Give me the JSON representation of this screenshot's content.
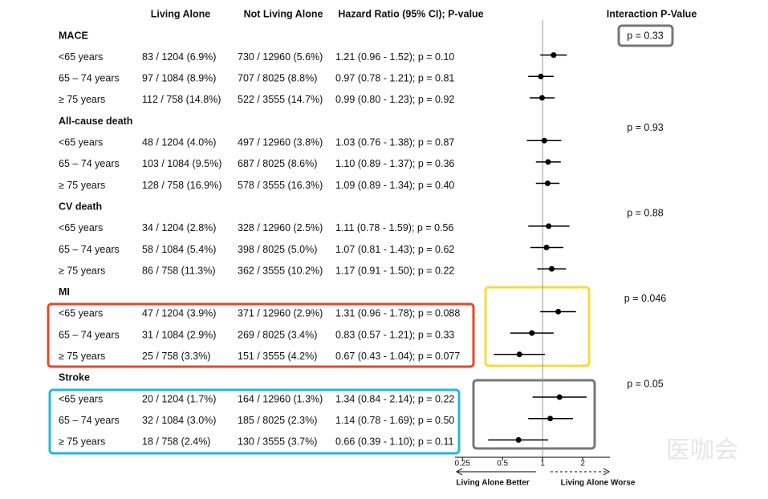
{
  "chart_data": {
    "type": "forest",
    "columns": {
      "living_alone": "Living Alone",
      "not_living_alone": "Not Living Alone",
      "result": "Hazard Ratio (95% CI); P-value",
      "interaction": "Interaction P-Value"
    },
    "groups": [
      {
        "name": "MACE",
        "interaction": "p = 0.33",
        "rows": [
          {
            "label": "<65 years",
            "living_alone": "83 / 1204 (6.9%)",
            "not_living_alone": "730 / 12960 (5.6%)",
            "result": "1.21 (0.96 - 1.52); p = 0.10",
            "hr": 1.21,
            "ci_low": 0.96,
            "ci_high": 1.52
          },
          {
            "label": "65 – 74 years",
            "living_alone": "97 / 1084 (8.9%)",
            "not_living_alone": "707 / 8025 (8.8%)",
            "result": "0.97 (0.78 - 1.21); p = 0.81",
            "hr": 0.97,
            "ci_low": 0.78,
            "ci_high": 1.21
          },
          {
            "label": "≥ 75 years",
            "living_alone": "112 / 758 (14.8%)",
            "not_living_alone": "522 / 3555 (14.7%)",
            "result": "0.99 (0.80 - 1.23); p = 0.92",
            "hr": 0.99,
            "ci_low": 0.8,
            "ci_high": 1.23
          }
        ]
      },
      {
        "name": "All-cause death",
        "interaction": "p = 0.93",
        "rows": [
          {
            "label": "<65 years",
            "living_alone": "48 / 1204 (4.0%)",
            "not_living_alone": "497 / 12960 (3.8%)",
            "result": "1.03  (0.76 - 1.38); p = 0.87",
            "hr": 1.03,
            "ci_low": 0.76,
            "ci_high": 1.38
          },
          {
            "label": "65 – 74 years",
            "living_alone": "103 / 1084 (9.5%)",
            "not_living_alone": "687 / 8025 (8.6%)",
            "result": "1.10 (0.89 - 1.37); p = 0.36",
            "hr": 1.1,
            "ci_low": 0.89,
            "ci_high": 1.37
          },
          {
            "label": "≥ 75 years",
            "living_alone": "128 / 758 (16.9%)",
            "not_living_alone": "578 / 3555 (16.3%)",
            "result": "1.09 (0.89 - 1.34); p = 0.40",
            "hr": 1.09,
            "ci_low": 0.89,
            "ci_high": 1.34
          }
        ]
      },
      {
        "name": "CV death",
        "interaction": "p = 0.88",
        "rows": [
          {
            "label": "<65 years",
            "living_alone": "34 / 1204 (2.8%)",
            "not_living_alone": "328 / 12960 (2.5%)",
            "result": "1.11 (0.78 - 1.59); p = 0.56",
            "hr": 1.11,
            "ci_low": 0.78,
            "ci_high": 1.59
          },
          {
            "label": "65 – 74 years",
            "living_alone": "58 / 1084 (5.4%)",
            "not_living_alone": "398 / 8025 (5.0%)",
            "result": "1.07 (0.81 - 1.43); p = 0.62",
            "hr": 1.07,
            "ci_low": 0.81,
            "ci_high": 1.43
          },
          {
            "label": "≥ 75 years",
            "living_alone": "86 / 758 (11.3%)",
            "not_living_alone": "362 / 3555 (10.2%)",
            "result": "1.17 (0.91 - 1.50); p = 0.22",
            "hr": 1.17,
            "ci_low": 0.91,
            "ci_high": 1.5
          }
        ]
      },
      {
        "name": "MI",
        "interaction": "p = 0.046",
        "rows": [
          {
            "label": "<65 years",
            "living_alone": "47 / 1204 (3.9%)",
            "not_living_alone": "371 / 12960 (2.9%)",
            "result": "1.31 (0.96 - 1.78); p = 0.088",
            "hr": 1.31,
            "ci_low": 0.96,
            "ci_high": 1.78
          },
          {
            "label": "65 – 74 years",
            "living_alone": "31 / 1084 (2.9%)",
            "not_living_alone": "269 / 8025 (3.4%)",
            "result": "0.83 (0.57 - 1.21); p = 0.33",
            "hr": 0.83,
            "ci_low": 0.57,
            "ci_high": 1.21
          },
          {
            "label": "≥ 75 years",
            "living_alone": "25 / 758 (3.3%)",
            "not_living_alone": "151 / 3555 (4.2%)",
            "result": "0.67 (0.43 - 1.04); p = 0.077",
            "hr": 0.67,
            "ci_low": 0.43,
            "ci_high": 1.04
          }
        ]
      },
      {
        "name": "Stroke",
        "interaction": "p = 0.05",
        "rows": [
          {
            "label": "<65 years",
            "living_alone": "20 / 1204 (1.7%)",
            "not_living_alone": "164 / 12960 (1.3%)",
            "result": "1.34 (0.84 - 2.14); p = 0.22",
            "hr": 1.34,
            "ci_low": 0.84,
            "ci_high": 2.14
          },
          {
            "label": "65 – 74 years",
            "living_alone": "32 / 1084 (3.0%)",
            "not_living_alone": "185 / 8025 (2.3%)",
            "result": "1.14 (0.78 - 1.69); p = 0.50",
            "hr": 1.14,
            "ci_low": 0.78,
            "ci_high": 1.69
          },
          {
            "label": "≥ 75 years",
            "living_alone": "18 / 758 (2.4%)",
            "not_living_alone": "130 / 3555 (3.7%)",
            "result": "0.66 (0.39 - 1.10); p = 0.11",
            "hr": 0.66,
            "ci_low": 0.39,
            "ci_high": 1.1
          }
        ]
      }
    ],
    "xlim": [
      0.22,
      3.2
    ],
    "xticks": [
      0.25,
      0.5,
      1,
      2
    ],
    "log_x": true,
    "reference": 1,
    "left_label": "Living Alone Better",
    "right_label": "Living Alone Worse",
    "watermark": "医咖会"
  }
}
